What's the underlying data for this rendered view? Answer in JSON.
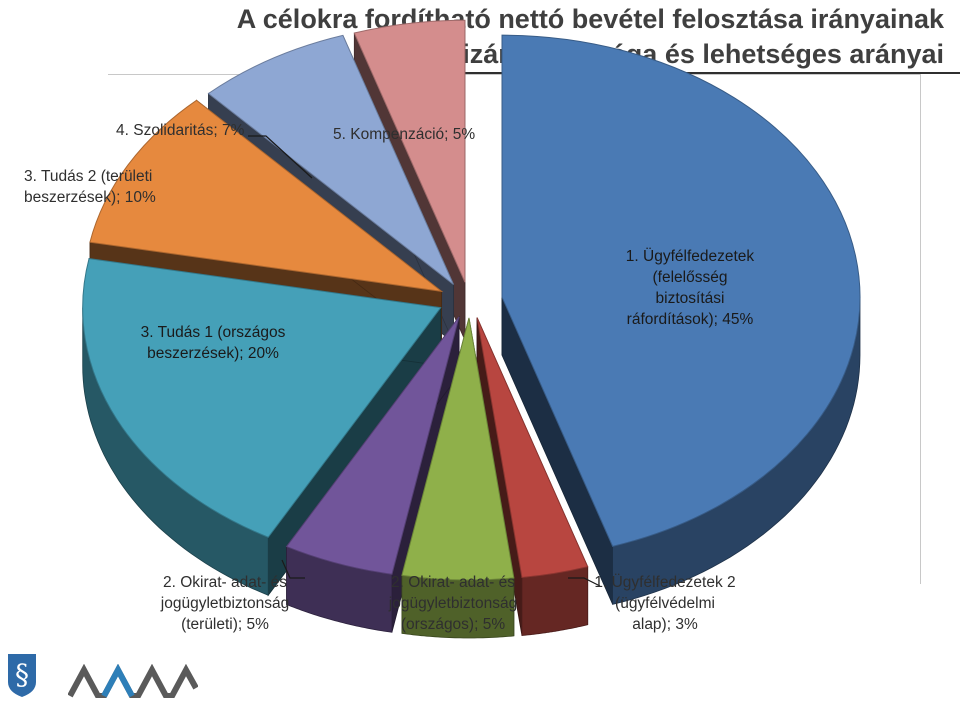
{
  "title": {
    "line1": "A célokra fordítható nettó bevétel felosztása irányainak",
    "line2": "kizárólagossága és lehetséges arányai"
  },
  "chart_data": {
    "type": "pie",
    "three_d": true,
    "exploded": true,
    "slices": [
      {
        "label": "1. Ügyfélfedezetek\n(felelősség\nbiztosítási\nráfordítások); 45%",
        "value": 45,
        "color": "#4a7ab4"
      },
      {
        "label": "1. Ügyfélfedezetek 2\n(ügyfélvédelmi\nalap); 3%",
        "value": 3,
        "color": "#b84640"
      },
      {
        "label": "2. Okirat- adat- és\njogügyletbiztonság\n(országos); 5%",
        "value": 5,
        "color": "#8fb04a"
      },
      {
        "label": "2. Okirat- adat- és\njogügyletbiztonság\n(területi); 5%",
        "value": 5,
        "color": "#71559a"
      },
      {
        "label": "3. Tudás 1 (országos\nbeszerzések); 20%",
        "value": 20,
        "color": "#45a0b8"
      },
      {
        "label": "3. Tudás 2 (területi\nbeszerzések); 10%",
        "value": 10,
        "color": "#e6893e"
      },
      {
        "label": "4. Szolidaritás;  7%",
        "value": 7,
        "color": "#8ea7d3"
      },
      {
        "label": "5. Kompenzáció; 5%",
        "value": 5,
        "color": "#d48d8d"
      }
    ]
  },
  "footer": {
    "logo1_icon": "section-sign-shield-icon",
    "logo2_icon": "mkk-logo"
  }
}
